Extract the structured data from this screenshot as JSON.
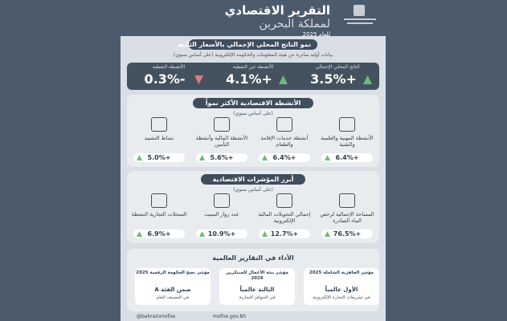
{
  "header": {
    "title": "التقرير الاقتصادي",
    "subtitle": "لمملكة البحرين",
    "year": "للعام 2025"
  },
  "gdp": {
    "title": "نمو الناتج المحلي الإجمالي بالأسعار الثابتة",
    "note": "بيانات أولية صادرة عن هيئة المعلومات والحكومة الإلكترونية (على أساس سنوي)",
    "stats": [
      {
        "label": "الناتج المحلي الإجمالي",
        "value": "+3.5%",
        "trend": "up"
      },
      {
        "label": "الأنشطة غير النفطية",
        "value": "+4.1%",
        "trend": "up"
      },
      {
        "label": "الأنشطة النفطية",
        "value": "-0.3%",
        "trend": "down"
      }
    ]
  },
  "activities": {
    "title": "الأنشطة الاقتصادية الأكثر نمواً",
    "note": "(على أساس سنوي)",
    "items": [
      {
        "label": "الأنشطة المهنية والعلمية والتقنية",
        "value": "+6.4%"
      },
      {
        "label": "أنشطة خدمات الإقامة والطعام",
        "value": "+6.4%"
      },
      {
        "label": "الأنشطة المالية وأنشطة التأمين",
        "value": "+5.6%"
      },
      {
        "label": "نشاط التشييد",
        "value": "+5.0%"
      }
    ]
  },
  "indicators": {
    "title": "أبرز المؤشرات الاقتصادية",
    "note": "(على أساس سنوي)",
    "items": [
      {
        "label": "المساحة الإجمالية لرخص البناء الصادرة",
        "value": "+76.5%"
      },
      {
        "label": "إجمالي التحويلات المالية الإلكترونية",
        "value": "+12.7%"
      },
      {
        "label": "عدد زوار المبيت",
        "value": "+10.9%"
      },
      {
        "label": "السجلات التجارية النشطة",
        "value": "+6.9%"
      }
    ]
  },
  "global": {
    "title": "الأداء في التقارير العالمية",
    "cards": [
      {
        "index": "مؤشر الجاهزية الشاملة 2025",
        "rank": "الأول عالمياً",
        "detail": "في تشريعات التجارة الإلكترونية"
      },
      {
        "index": "مؤشر بيئة الأعمال للمبتكرين 2026",
        "rank": "الثالثة عالمياً",
        "detail": "في الحوافز التجارية"
      },
      {
        "index": "مؤشر نضج الحكومة الرقمية 2025",
        "rank": "ضمن الفئة A",
        "detail": "في التصنيف العام"
      }
    ]
  },
  "footer": {
    "social": "@bahrainmofne",
    "website": "mofne.gov.bh"
  }
}
